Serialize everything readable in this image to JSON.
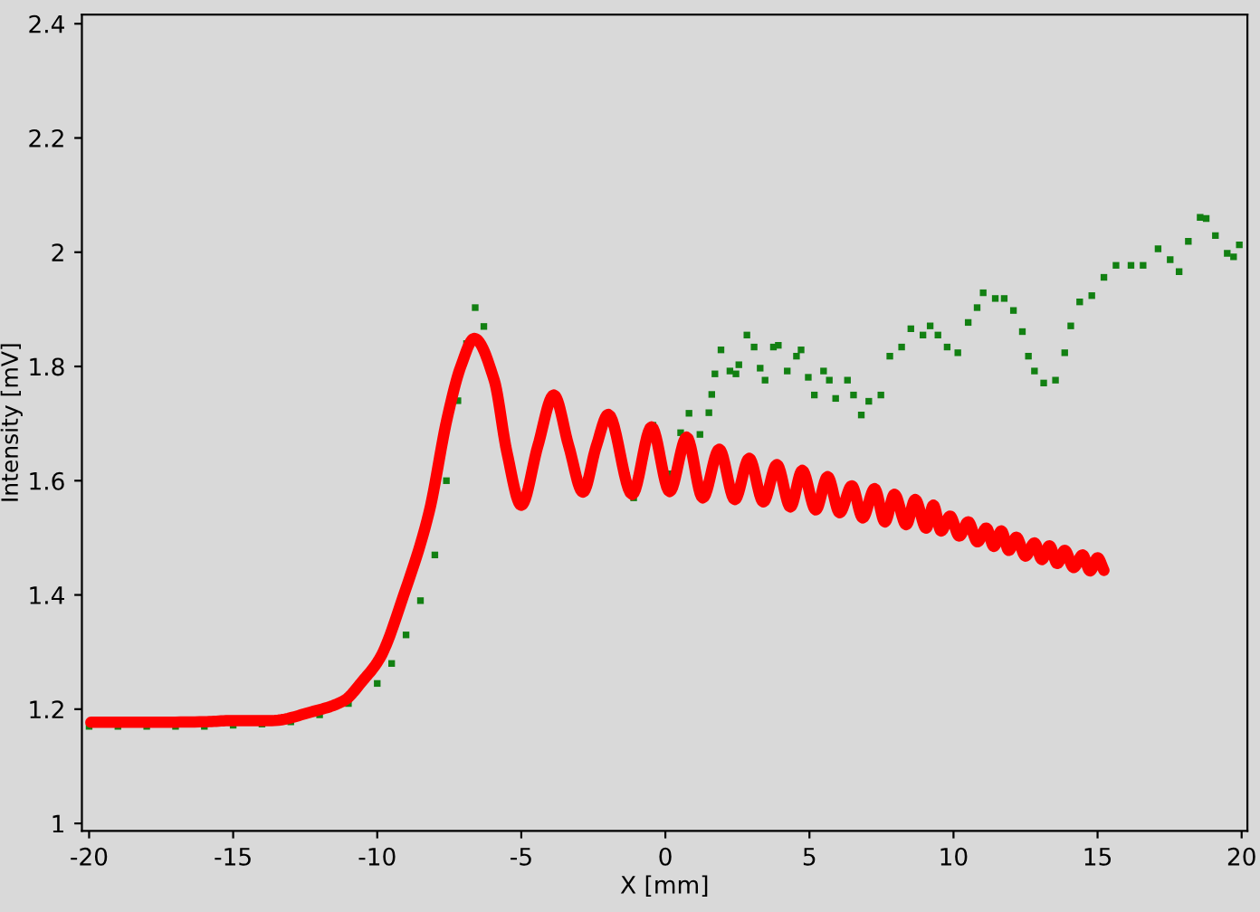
{
  "chart_data": {
    "type": "line",
    "xlabel": "X [mm]",
    "ylabel": "Intensity [mV]",
    "xlim": [
      -20.25,
      20.2
    ],
    "ylim": [
      0.987,
      2.416
    ],
    "xticks": [
      -20,
      -15,
      -10,
      -5,
      0,
      5,
      10,
      15,
      20
    ],
    "yticks": [
      1,
      1.2,
      1.4,
      1.6,
      1.8,
      2,
      2.2,
      2.4
    ],
    "grid": false,
    "legend": false,
    "series": [
      {
        "type": "scatter",
        "marker": "square",
        "color": "#128012",
        "x": [
          -20,
          -19,
          -18,
          -17,
          -16,
          -15,
          -14,
          -13,
          -12,
          -11,
          -10,
          -9.5,
          -9,
          -8.5,
          -8,
          -7.6,
          -7.2,
          -6.9,
          -6.6,
          -6.3,
          -5.9,
          -5.5,
          -5.0,
          -4.43,
          -3.87,
          -3.35,
          -2.86,
          -2.4,
          -1.98,
          -1.55,
          -1.1,
          -0.43,
          -0.06,
          0.19,
          0.53,
          0.82,
          1.2,
          1.51,
          1.61,
          1.72,
          1.93,
          2.24,
          2.45,
          2.55,
          2.83,
          3.08,
          3.29,
          3.46,
          3.75,
          3.92,
          4.23,
          4.55,
          4.71,
          4.96,
          5.17,
          5.49,
          5.69,
          5.91,
          6.32,
          6.53,
          6.8,
          7.06,
          7.48,
          7.79,
          8.2,
          8.52,
          8.94,
          9.19,
          9.46,
          9.78,
          10.15,
          10.51,
          10.82,
          11.03,
          11.45,
          11.76,
          12.08,
          12.39,
          12.6,
          12.81,
          13.13,
          13.54,
          13.86,
          14.07,
          14.38,
          14.8,
          15.22,
          15.64,
          16.16,
          16.58,
          17.1,
          17.52,
          17.83,
          18.15,
          18.56,
          18.77,
          19.09,
          19.5,
          19.72,
          19.92
        ],
        "values": [
          1.17,
          1.17,
          1.17,
          1.17,
          1.17,
          1.172,
          1.174,
          1.178,
          1.19,
          1.21,
          1.245,
          1.28,
          1.33,
          1.39,
          1.47,
          1.6,
          1.74,
          1.84,
          1.903,
          1.87,
          null,
          null,
          null,
          null,
          null,
          null,
          null,
          null,
          null,
          null,
          1.57,
          1.697,
          null,
          1.612,
          1.684,
          1.718,
          1.681,
          1.719,
          1.751,
          1.787,
          1.829,
          1.792,
          1.787,
          1.803,
          1.855,
          1.834,
          1.797,
          1.776,
          1.834,
          1.837,
          1.792,
          1.818,
          1.829,
          1.781,
          1.75,
          1.792,
          1.776,
          1.744,
          1.776,
          1.75,
          1.715,
          1.739,
          1.75,
          1.818,
          1.834,
          1.866,
          1.855,
          1.871,
          1.855,
          1.834,
          1.824,
          1.877,
          1.903,
          1.929,
          1.919,
          1.919,
          1.898,
          1.861,
          1.818,
          1.792,
          1.771,
          1.776,
          1.824,
          1.871,
          1.913,
          1.924,
          1.956,
          1.977,
          1.977,
          1.977,
          2.006,
          1.987,
          1.966,
          2.019,
          2.061,
          2.059,
          2.029,
          1.998,
          1.992,
          2.013
        ]
      },
      {
        "color": "#ff0000",
        "x": [
          -19.94,
          -18,
          -16,
          -15,
          -13.66,
          -12.3,
          -11.15,
          -10.5,
          -9.9,
          -9.08,
          -8.2,
          -7.57,
          -7.1,
          -6.63,
          -5.94,
          -5.5,
          -5.0,
          -4.43,
          -3.87,
          -3.35,
          -2.86,
          -2.4,
          -1.98,
          -1.15,
          -0.48,
          0.15,
          0.74,
          1.3,
          1.87,
          2.41,
          2.91,
          3.4,
          3.87,
          4.34,
          4.75,
          5.22,
          5.63,
          6.05,
          6.47,
          6.85,
          7.26,
          7.62,
          7.95,
          8.36,
          8.67,
          9.05,
          9.3,
          9.57,
          9.88,
          10.2,
          10.51,
          10.83,
          11.14,
          11.4,
          11.66,
          11.92,
          12.18,
          12.5,
          12.81,
          13.07,
          13.33,
          13.6,
          13.86,
          14.17,
          14.48,
          14.74,
          15.0,
          15.22
        ],
        "values": [
          1.177,
          1.177,
          1.178,
          1.18,
          1.18,
          1.195,
          1.215,
          1.25,
          1.29,
          1.4,
          1.545,
          1.71,
          1.8,
          1.849,
          1.776,
          1.65,
          1.557,
          1.66,
          1.75,
          1.66,
          1.58,
          1.66,
          1.716,
          1.576,
          1.694,
          1.581,
          1.676,
          1.57,
          1.655,
          1.567,
          1.639,
          1.563,
          1.628,
          1.554,
          1.618,
          1.549,
          1.607,
          1.544,
          1.591,
          1.535,
          1.586,
          1.528,
          1.576,
          1.523,
          1.567,
          1.517,
          1.557,
          1.512,
          1.538,
          1.503,
          1.528,
          1.493,
          1.517,
          1.485,
          1.512,
          1.478,
          1.501,
          1.468,
          1.491,
          1.462,
          1.486,
          1.455,
          1.478,
          1.448,
          1.47,
          1.442,
          1.465,
          1.443
        ]
      }
    ]
  }
}
